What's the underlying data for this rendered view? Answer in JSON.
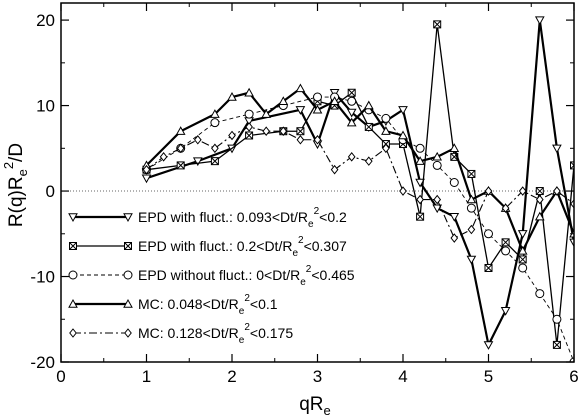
{
  "chart_data": {
    "type": "line",
    "xlabel": "qR",
    "xlabel_sub": "e",
    "ylabel": "R(q)R",
    "ylabel_sub": "e",
    "ylabel_sup": "2",
    "ylabel_tail": "/D",
    "xlim": [
      0,
      6
    ],
    "ylim": [
      -20,
      22
    ],
    "xticks": [
      0,
      1,
      2,
      3,
      4,
      5,
      6
    ],
    "yticks": [
      -20,
      -10,
      0,
      10,
      20
    ],
    "xtick_labels": [
      "0",
      "1",
      "2",
      "3",
      "4",
      "5",
      "6"
    ],
    "ytick_labels": [
      "-20",
      "-10",
      "0",
      "10",
      "20"
    ],
    "zero_line": true,
    "legend_position": "bottom-left",
    "series": [
      {
        "name": "EPD with fluct.: 0.093<Dt/R_e^2<0.2",
        "legend": {
          "pre": "EPD with fluct.: 0.093<Dt/R",
          "sub": "e",
          "sup": "2",
          "post": "<0.2"
        },
        "marker": "triangle-down",
        "line": "solid",
        "width": 2.2,
        "x": [
          1.0,
          1.6,
          2.0,
          2.2,
          2.8,
          3.0,
          3.2,
          3.4,
          3.6,
          3.8,
          4.0,
          4.2,
          4.4,
          4.6,
          4.8,
          5.0,
          5.2,
          5.4,
          5.6,
          5.8,
          6.0
        ],
        "y": [
          1.5,
          3.5,
          5.0,
          8.2,
          9.5,
          5.5,
          11.5,
          9.2,
          7.5,
          8.2,
          9.5,
          1.0,
          -2.0,
          -3.0,
          -8.0,
          -18.0,
          -14.0,
          -5.0,
          20.0,
          5.0,
          -6.0
        ]
      },
      {
        "name": "EPD with fluct.: 0.2<Dt/R_e^2<0.307",
        "legend": {
          "pre": "EPD with fluct.: 0.2<Dt/R",
          "sub": "e",
          "sup": "2",
          "post": "<0.307"
        },
        "marker": "square-x",
        "line": "solid",
        "width": 1.3,
        "x": [
          1.0,
          1.4,
          1.8,
          2.2,
          2.6,
          2.8,
          3.0,
          3.2,
          3.4,
          3.6,
          3.8,
          4.0,
          4.2,
          4.4,
          4.6,
          4.8,
          5.0,
          5.2,
          5.4,
          5.6,
          5.8,
          6.0
        ],
        "y": [
          2.5,
          3.0,
          3.5,
          6.5,
          7.0,
          7.0,
          10.5,
          10.0,
          11.5,
          7.5,
          5.5,
          5.5,
          -3.0,
          19.5,
          4.0,
          2.0,
          -9.0,
          -6.0,
          -8.0,
          0.0,
          -18.0,
          3.0
        ]
      },
      {
        "name": "EPD without fluct.: 0<Dt/R_e^2<0.465",
        "legend": {
          "pre": "EPD without fluct.: 0<Dt/R",
          "sub": "e",
          "sup": "2",
          "post": "<0.465"
        },
        "marker": "circle",
        "line": "dashed",
        "width": 0.9,
        "x": [
          1.0,
          1.4,
          1.8,
          2.2,
          2.6,
          3.0,
          3.2,
          3.4,
          3.6,
          3.8,
          4.0,
          4.2,
          4.4,
          4.6,
          4.8,
          5.0,
          5.2,
          5.4,
          5.6,
          5.8,
          6.0
        ],
        "y": [
          2.5,
          5.0,
          8.0,
          9.0,
          10.0,
          11.0,
          11.0,
          10.5,
          9.5,
          8.5,
          6.0,
          5.0,
          3.0,
          1.0,
          -2.0,
          -5.0,
          -7.0,
          -9.0,
          -12.0,
          -15.0,
          -20.0
        ]
      },
      {
        "name": "MC: 0.048<Dt/R_e^2<0.1",
        "legend": {
          "pre": "MC: 0.048<Dt/R",
          "sub": "e",
          "sup": "2",
          "post": "<0.1"
        },
        "marker": "triangle-up",
        "line": "solid",
        "width": 2.2,
        "x": [
          1.0,
          1.4,
          1.8,
          2.0,
          2.2,
          2.4,
          2.6,
          2.8,
          3.0,
          3.2,
          3.4,
          3.6,
          3.8,
          4.0,
          4.2,
          4.4,
          4.6,
          4.8,
          5.0,
          5.2,
          5.4,
          5.6,
          5.8,
          6.0
        ],
        "y": [
          3.0,
          7.0,
          9.0,
          11.0,
          11.5,
          9.0,
          10.5,
          12.0,
          9.5,
          10.5,
          8.0,
          10.0,
          7.0,
          6.5,
          3.5,
          4.0,
          5.0,
          -1.0,
          0.0,
          -2.0,
          -7.0,
          -3.0,
          0.0,
          -5.0
        ]
      },
      {
        "name": "MC: 0.128<Dt/R_e^2<0.175",
        "legend": {
          "pre": "MC: 0.128<Dt/R",
          "sub": "e",
          "sup": "2",
          "post": "<0.175"
        },
        "marker": "diamond",
        "line": "dashdot",
        "width": 1.1,
        "x": [
          1.0,
          1.2,
          1.4,
          1.6,
          1.8,
          2.0,
          2.2,
          2.4,
          2.6,
          2.8,
          3.0,
          3.2,
          3.4,
          3.6,
          3.8,
          4.0,
          4.2,
          4.4,
          4.6,
          4.8,
          5.0,
          5.2,
          5.4,
          5.6,
          5.8,
          6.0
        ],
        "y": [
          2.5,
          4.0,
          5.0,
          6.0,
          5.0,
          6.5,
          7.5,
          7.0,
          7.0,
          6.0,
          6.0,
          2.5,
          4.0,
          3.5,
          5.0,
          0.0,
          -1.0,
          -1.0,
          -5.5,
          -4.5,
          0.0,
          -2.0,
          0.0,
          -1.0,
          0.0,
          -1.5
        ]
      }
    ]
  }
}
